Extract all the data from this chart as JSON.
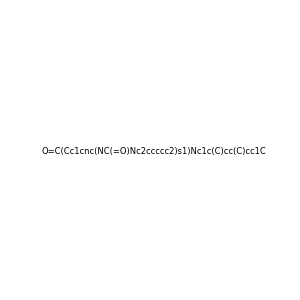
{
  "smiles": "O=C(Cc1cnc(NC(=O)Nc2ccccc2)s1)Nc1c(C)cc(C)cc1C",
  "image_size": 300,
  "background_color": "#e8e8e8",
  "title": "",
  "mol_colors": {
    "C": "#000000",
    "N": "#0000ff",
    "O": "#ff0000",
    "S": "#cccc00",
    "H_on_N": "#008080"
  }
}
